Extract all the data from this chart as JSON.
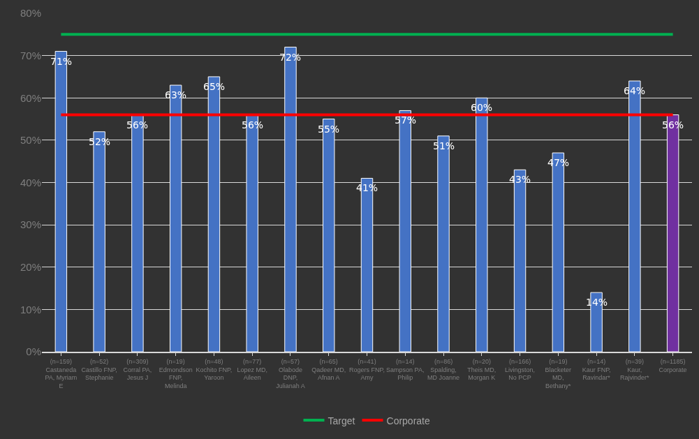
{
  "chart_data": {
    "type": "bar",
    "categories": [
      "(n=159)\nCastaneda\nPA, Myriam\nE",
      "(n=52)\nCastillo FNP,\nStephanie",
      "(n=309)\nCorral PA,\nJesus J",
      "(n=19)\nEdmondson\nFNP,\nMelinda",
      "(n=48)\nKochito FNP,\nYaroon",
      "(n=77)\nLopez MD,\nAileen",
      "(n=57)\nOlabode\nDNP,\nJulianah A",
      "(n=65)\nQadeer MD,\nAfnan A",
      "(n=41)\nRogers FNP,\nAmy",
      "(n=14)\nSampson PA,\nPhilip",
      "(n=86)\nSpalding,\nMD Joanne",
      "(n=20)\nTheis MD,\nMorgan K",
      "(n=166)\nLivingston,\nNo PCP",
      "(n=19)\nBlacketer\nMD,\nBethany*",
      "(n=14)\nKaur FNP,\nRavindar*",
      "(n=39)\nKaur,\nRajvinder*",
      "(n=1185)\nCorporate"
    ],
    "series": [
      {
        "colors": [
          "#4472c4",
          "#4472c4",
          "#4472c4",
          "#4472c4",
          "#4472c4",
          "#4472c4",
          "#4472c4",
          "#4472c4",
          "#4472c4",
          "#4472c4",
          "#4472c4",
          "#4472c4",
          "#4472c4",
          "#4472c4",
          "#4472c4",
          "#4472c4",
          "#7030a0"
        ],
        "values": [
          71,
          52,
          56,
          63,
          65,
          56,
          72,
          55,
          41,
          57,
          51,
          60,
          43,
          47,
          14,
          64,
          56
        ],
        "value_labels": [
          "71%",
          "52%",
          "56%",
          "63%",
          "65%",
          "56%",
          "72%",
          "55%",
          "41%",
          "57%",
          "51%",
          "60%",
          "43%",
          "47%",
          "14%",
          "64%",
          "56%"
        ]
      },
      {
        "type": "line",
        "name": "Target",
        "color": "#00b050",
        "values": [
          75,
          75,
          75,
          75,
          75,
          75,
          75,
          75,
          75,
          75,
          75,
          75,
          75,
          75,
          75,
          75,
          75
        ]
      },
      {
        "type": "line",
        "name": "Corporate",
        "color": "#ff0000",
        "values": [
          56,
          56,
          56,
          56,
          56,
          56,
          56,
          56,
          56,
          56,
          56,
          56,
          56,
          56,
          56,
          56,
          56
        ]
      }
    ],
    "ylim": [
      0,
      80
    ],
    "yticks": [
      {
        "value": 0,
        "label": "0%"
      },
      {
        "value": 10,
        "label": "10%"
      },
      {
        "value": 20,
        "label": "20%"
      },
      {
        "value": 30,
        "label": "30%"
      },
      {
        "value": 40,
        "label": "40%"
      },
      {
        "value": 50,
        "label": "50%"
      },
      {
        "value": 60,
        "label": "60%"
      },
      {
        "value": 70,
        "label": "70%"
      },
      {
        "value": 80,
        "label": "80%"
      }
    ],
    "grid": "y",
    "legend": "bottom",
    "marker": "none",
    "line_style": "solid"
  }
}
